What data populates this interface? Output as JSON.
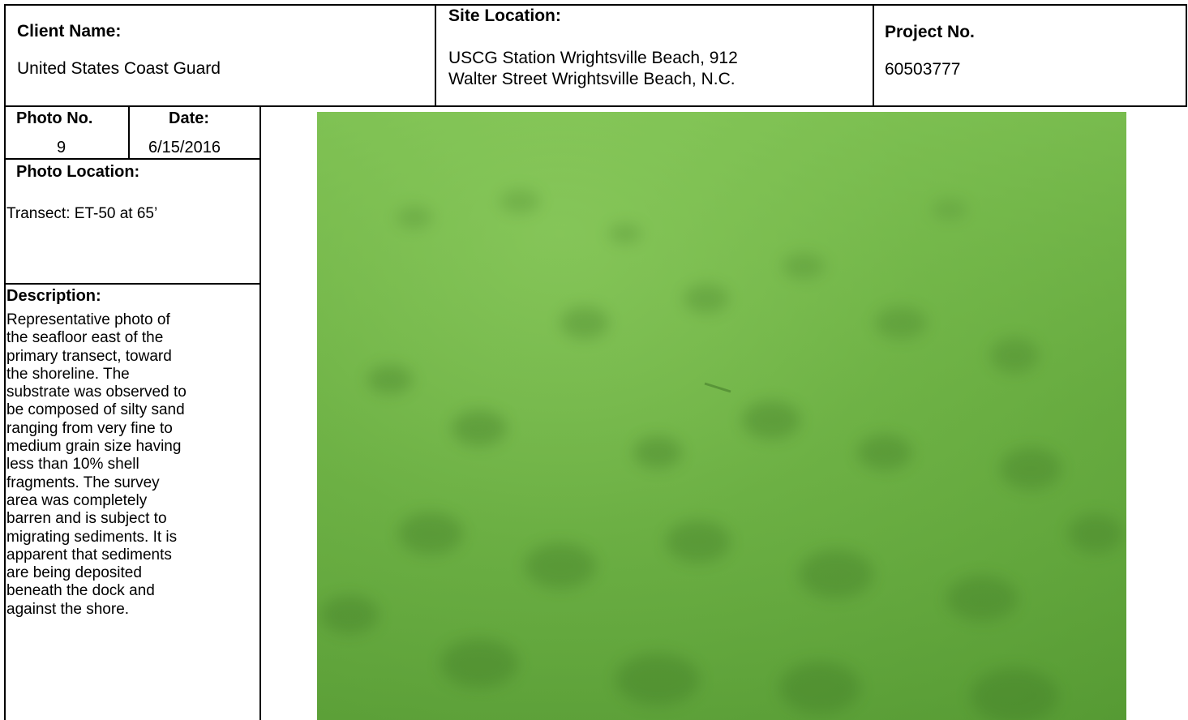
{
  "header": {
    "client_label": "Client Name:",
    "client_value": "United States Coast Guard",
    "site_label": "Site Location:",
    "site_line1": "USCG Station Wrightsville Beach, 912",
    "site_line2": "Walter Street Wrightsville Beach, N.C.",
    "project_label": "Project No.",
    "project_value": "60503777"
  },
  "photo_info": {
    "photo_no_label": "Photo No.",
    "photo_no_value": "9",
    "date_label": "Date:",
    "date_value": "6/15/2016",
    "location_label": "Photo Location:",
    "location_value": "Transect: ET-50 at 65’",
    "description_label": "Description:",
    "description_text": "Representative photo of\nthe seafloor east of the\nprimary transect, toward\nthe shoreline. The\nsubstrate was observed to\nbe composed of silty sand\nranging from very fine to\nmedium grain size having\nless than 10% shell\nfragments. The survey\narea was completely\nbarren and is subject to\nmigrating sediments. It is\napparent that sediments\nare being deposited\nbeneath the dock and\nagainst the shore."
  },
  "photo": {
    "subject": "underwater seafloor photo",
    "colors": {
      "water": "#6cb044",
      "shadow": "#3f7a28"
    }
  }
}
